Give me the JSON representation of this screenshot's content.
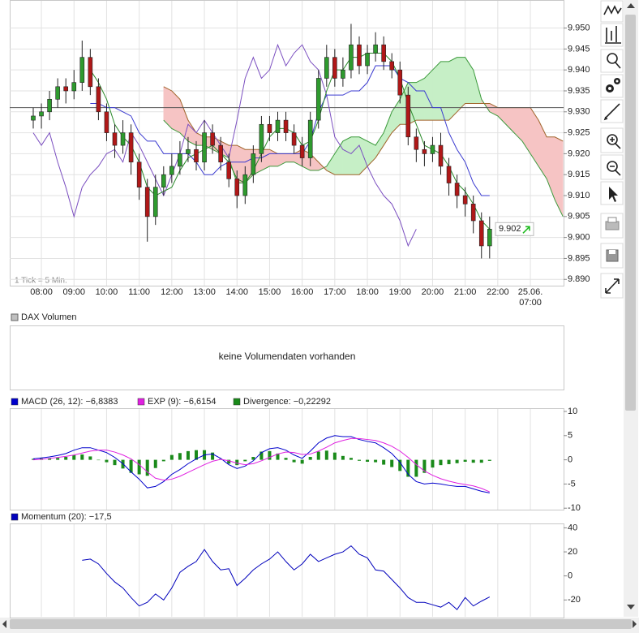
{
  "chart_data": [
    {
      "type": "candlestick",
      "note": "1 Tick = 5 Min.",
      "categories": [
        null,
        "08:00",
        null,
        null,
        null,
        "09:00",
        null,
        null,
        null,
        "10:00",
        null,
        null,
        null,
        "11:00",
        null,
        null,
        null,
        "12:00",
        null,
        null,
        null,
        "13:00",
        null,
        null,
        null,
        "14:00",
        null,
        null,
        null,
        "15:00",
        null,
        null,
        null,
        "16:00",
        null,
        null,
        null,
        "17:00",
        null,
        null,
        null,
        "18:00",
        null,
        null,
        null,
        "19:00",
        null,
        null,
        null,
        "20:00",
        null,
        null,
        null,
        "21:00",
        null,
        null,
        null,
        "22:00",
        null,
        null,
        null,
        "25.06. 07:00",
        null,
        null,
        null,
        null
      ],
      "open": [
        9.928,
        9.929,
        9.93,
        9.933,
        9.936,
        9.935,
        9.937,
        9.943,
        9.936,
        9.93,
        9.925,
        9.922,
        9.925,
        9.918,
        9.912,
        9.905,
        9.912,
        9.915,
        9.917,
        9.92,
        9.921,
        9.918,
        9.925,
        9.922,
        9.918,
        9.914,
        9.91,
        9.915,
        9.92,
        9.927,
        9.925,
        9.928,
        9.925,
        9.922,
        9.919,
        9.928,
        9.938,
        9.943,
        9.938,
        9.94,
        9.946,
        9.941,
        9.944,
        9.946,
        9.942,
        9.94,
        9.934,
        9.924,
        9.921,
        9.92,
        9.922,
        9.917,
        9.913,
        9.91,
        9.908,
        9.904,
        9.898,
        null,
        null,
        null,
        null,
        null,
        null,
        null,
        null,
        null
      ],
      "high": [
        9.931,
        9.932,
        9.935,
        9.938,
        9.938,
        9.94,
        9.947,
        9.945,
        9.938,
        9.932,
        9.927,
        9.928,
        9.927,
        9.92,
        9.914,
        9.915,
        9.917,
        9.92,
        9.923,
        9.924,
        9.923,
        9.928,
        9.927,
        9.924,
        9.92,
        9.916,
        9.917,
        9.922,
        9.929,
        9.929,
        9.93,
        9.93,
        9.927,
        9.924,
        9.93,
        9.94,
        9.946,
        9.945,
        9.943,
        9.951,
        9.948,
        9.946,
        9.949,
        9.948,
        9.944,
        9.942,
        9.936,
        9.926,
        9.923,
        9.924,
        9.925,
        9.919,
        9.915,
        9.912,
        9.91,
        9.906,
        9.905,
        null,
        null,
        null,
        null,
        null,
        null,
        null,
        null,
        null
      ],
      "low": [
        9.926,
        9.926,
        9.928,
        9.931,
        9.932,
        9.933,
        9.935,
        9.934,
        9.928,
        9.923,
        9.919,
        9.92,
        9.915,
        9.909,
        9.899,
        9.903,
        9.91,
        9.913,
        9.915,
        9.918,
        9.916,
        9.916,
        9.92,
        9.916,
        9.912,
        9.907,
        9.908,
        9.913,
        9.918,
        9.923,
        9.923,
        9.923,
        9.92,
        9.917,
        9.917,
        9.926,
        9.936,
        9.936,
        9.936,
        9.938,
        9.939,
        9.939,
        9.942,
        9.94,
        9.938,
        9.932,
        9.922,
        9.918,
        9.917,
        9.918,
        9.915,
        9.91,
        9.907,
        9.905,
        9.901,
        9.895,
        9.895,
        null,
        null,
        null,
        null,
        null,
        null,
        null,
        null,
        null
      ],
      "close": [
        9.929,
        9.93,
        9.933,
        9.936,
        9.935,
        9.937,
        9.943,
        9.936,
        9.93,
        9.925,
        9.922,
        9.925,
        9.918,
        9.912,
        9.905,
        9.912,
        9.915,
        9.917,
        9.92,
        9.921,
        9.918,
        9.925,
        9.922,
        9.918,
        9.914,
        9.91,
        9.915,
        9.92,
        9.927,
        9.925,
        9.928,
        9.925,
        9.922,
        9.919,
        9.928,
        9.938,
        9.943,
        9.938,
        9.94,
        9.946,
        9.941,
        9.944,
        9.946,
        9.942,
        9.94,
        9.934,
        9.924,
        9.921,
        9.92,
        9.922,
        9.917,
        9.913,
        9.91,
        9.908,
        9.904,
        9.898,
        9.902,
        null,
        null,
        null,
        null,
        null,
        null,
        null,
        null,
        null
      ],
      "up_color": "#2e9a2e",
      "down_color": "#b01818",
      "series": [
        {
          "color": "#7b4fc0",
          "values": [
            9.925,
            9.922,
            9.925,
            9.918,
            9.912,
            9.905,
            9.912,
            9.915,
            9.917,
            9.92,
            9.921,
            9.918,
            9.925,
            9.922,
            9.918,
            9.914,
            9.91,
            9.915,
            9.92,
            9.927,
            9.925,
            9.928,
            9.925,
            9.922,
            9.919,
            9.928,
            9.938,
            9.943,
            9.938,
            9.94,
            9.946,
            9.941,
            9.944,
            9.946,
            9.942,
            9.94,
            9.934,
            9.924,
            9.921,
            9.92,
            9.922,
            9.917,
            9.913,
            9.91,
            9.908,
            9.904,
            9.898,
            9.902,
            null,
            null,
            null,
            null,
            null,
            null,
            null,
            null,
            null,
            null,
            null,
            null,
            null,
            null,
            null,
            null,
            null,
            null
          ]
        },
        {
          "color": "#3a3ad0",
          "values": [
            null,
            null,
            null,
            null,
            null,
            null,
            null,
            9.932,
            9.932,
            9.931,
            9.931,
            9.93,
            9.929,
            9.925,
            9.923,
            9.923,
            9.92,
            9.92,
            9.92,
            9.92,
            9.918,
            9.915,
            9.915,
            9.917,
            9.918,
            9.918,
            9.918,
            9.919,
            9.919,
            9.92,
            9.92,
            9.92,
            9.92,
            9.92,
            9.923,
            9.93,
            9.934,
            9.934,
            9.934,
            9.935,
            9.935,
            9.937,
            9.941,
            9.941,
            9.941,
            9.938,
            9.937,
            9.935,
            9.935,
            9.931,
            9.931,
            9.925,
            9.921,
            9.918,
            9.913,
            9.91,
            9.91,
            null,
            null,
            null,
            null,
            null,
            null,
            null,
            null,
            null
          ]
        },
        {
          "color": "#2a8a2a",
          "values": [
            null,
            null,
            null,
            null,
            null,
            null,
            null,
            9.94,
            9.937,
            9.933,
            9.927,
            9.924,
            9.922,
            9.918,
            9.912,
            9.91,
            9.911,
            9.912,
            9.916,
            9.919,
            9.92,
            9.921,
            9.922,
            9.92,
            9.918,
            9.914,
            9.913,
            9.916,
            9.92,
            9.924,
            9.926,
            9.926,
            9.925,
            9.922,
            9.923,
            9.928,
            9.935,
            9.94,
            9.94,
            9.943,
            9.943,
            9.944,
            9.944,
            9.944,
            9.942,
            9.938,
            9.932,
            9.927,
            9.922,
            9.921,
            9.92,
            9.917,
            9.913,
            9.911,
            9.908,
            9.904,
            9.902,
            null,
            null,
            null,
            null,
            null,
            null,
            null,
            null,
            null
          ]
        }
      ],
      "cloud": {
        "span_a": [
          null,
          null,
          null,
          null,
          null,
          null,
          null,
          null,
          null,
          null,
          null,
          null,
          null,
          null,
          null,
          null,
          9.928,
          9.926,
          9.925,
          9.923,
          9.922,
          9.922,
          9.921,
          9.92,
          9.919,
          9.913,
          9.913,
          9.915,
          9.916,
          9.917,
          9.917,
          9.918,
          9.918,
          9.917,
          9.916,
          9.916,
          9.917,
          9.92,
          9.923,
          9.924,
          9.924,
          9.923,
          9.922,
          9.925,
          9.93,
          9.933,
          9.937,
          9.937,
          9.938,
          9.94,
          9.942,
          9.942,
          9.943,
          9.943,
          9.94,
          9.933,
          9.93,
          9.929,
          9.927,
          9.925,
          9.923,
          9.92,
          9.917,
          9.914,
          9.909,
          9.905
        ],
        "span_b": [
          null,
          null,
          null,
          null,
          null,
          null,
          null,
          null,
          null,
          null,
          null,
          null,
          null,
          null,
          null,
          null,
          9.936,
          9.935,
          9.933,
          9.928,
          9.925,
          9.924,
          9.924,
          9.923,
          9.922,
          9.922,
          9.921,
          9.921,
          9.921,
          9.921,
          9.92,
          9.92,
          9.92,
          9.921,
          9.92,
          9.918,
          9.916,
          9.915,
          9.915,
          9.915,
          9.915,
          9.917,
          9.919,
          9.922,
          9.925,
          9.927,
          9.927,
          9.928,
          9.928,
          9.928,
          9.928,
          9.928,
          9.93,
          9.932,
          9.932,
          9.932,
          9.932,
          9.931,
          9.931,
          9.931,
          9.931,
          9.931,
          9.928,
          9.924,
          9.924,
          9.923
        ],
        "span_a_color": "#3c9a3c",
        "span_b_color": "#a0642a",
        "up_fill": "#c6efc6",
        "down_fill": "#f6c4c4"
      },
      "reference_line": 9.931,
      "last_price": 9.902,
      "ylim": [
        9.8885,
        9.9565
      ],
      "yticks": [
        {
          "value": 9.95,
          "label": "9.950"
        },
        9.945,
        {
          "value": 9.94,
          "label": "9.940"
        },
        9.935,
        {
          "value": 9.93,
          "label": "9.930"
        },
        9.925,
        {
          "value": 9.92,
          "label": "9.920"
        },
        9.915,
        {
          "value": 9.91,
          "label": "9.910"
        },
        9.905,
        {
          "value": 9.9,
          "label": "9.900"
        },
        9.895,
        {
          "value": 9.89,
          "label": "9.890"
        }
      ],
      "grid": true
    },
    {
      "type": "bar",
      "title": "DAX Volumen",
      "message": "keine Volumendaten vorhanden",
      "color": "#c0c0c0"
    },
    {
      "type": "line",
      "series": [
        {
          "name": "MACD (26, 12): −6,8383",
          "color": "#0000cc",
          "style": "line",
          "values": [
            0.2,
            0.4,
            0.6,
            0.9,
            1.3,
            2.0,
            2.5,
            2.5,
            2.0,
            1.5,
            0.5,
            -0.8,
            -2.5,
            -4.0,
            -5.8,
            -5.5,
            -4.5,
            -3.0,
            -2.0,
            -0.8,
            0.2,
            1.0,
            1.2,
            0.3,
            -1.0,
            -1.8,
            -1.3,
            -0.2,
            1.5,
            2.3,
            2.5,
            2.0,
            1.0,
            0.3,
            1.8,
            3.5,
            4.5,
            5.0,
            4.8,
            4.8,
            4.2,
            3.8,
            3.5,
            2.5,
            1.3,
            -0.5,
            -3.0,
            -4.5,
            -5.0,
            -4.8,
            -5.0,
            -5.3,
            -5.5,
            -5.5,
            -6.0,
            -6.5,
            -6.84,
            null,
            null,
            null,
            null,
            null,
            null,
            null,
            null,
            null
          ]
        },
        {
          "name": "EXP (9): −6,6154",
          "color": "#e020e0",
          "style": "line",
          "values": [
            0,
            0.1,
            0.3,
            0.5,
            0.7,
            1.0,
            1.4,
            1.8,
            2.0,
            2.0,
            1.6,
            1.0,
            0.2,
            -1.0,
            -2.5,
            -3.8,
            -4.2,
            -4.0,
            -3.4,
            -2.6,
            -1.8,
            -1.0,
            -0.3,
            0.1,
            -0.2,
            -0.7,
            -1.0,
            -0.8,
            -0.2,
            0.5,
            1.2,
            1.6,
            1.5,
            1.1,
            1.2,
            1.8,
            2.6,
            3.5,
            4.0,
            4.4,
            4.4,
            4.2,
            4.0,
            3.5,
            2.8,
            1.8,
            0.5,
            -1.0,
            -2.3,
            -3.2,
            -3.9,
            -4.4,
            -4.8,
            -5.1,
            -5.4,
            -5.9,
            -6.62,
            null,
            null,
            null,
            null,
            null,
            null,
            null,
            null,
            null
          ]
        },
        {
          "name": "Divergence: −0,22292",
          "color": "#1a8a1a",
          "style": "bar",
          "values": [
            0.2,
            0.3,
            0.3,
            0.4,
            0.6,
            1.0,
            1.1,
            0.7,
            0,
            -0.5,
            -1.1,
            -1.8,
            -2.7,
            -3.0,
            -3.3,
            -1.7,
            -0.3,
            1.0,
            1.4,
            1.8,
            2.0,
            2.0,
            1.5,
            0.2,
            -0.8,
            -1.1,
            -0.3,
            0.6,
            1.7,
            1.8,
            1.3,
            0.4,
            -0.5,
            -0.8,
            0.6,
            1.7,
            1.9,
            1.5,
            0.8,
            0.4,
            -0.2,
            -0.4,
            -0.5,
            -1.0,
            -1.5,
            -2.3,
            -3.5,
            -3.5,
            -2.7,
            -1.6,
            -1.1,
            -0.9,
            -0.7,
            -0.4,
            -0.6,
            -0.6,
            -0.22,
            null,
            null,
            null,
            null,
            null,
            null,
            null,
            null,
            null
          ]
        }
      ],
      "ylim": [
        -10.3,
        10.5
      ],
      "yticks": [
        10,
        5,
        0,
        -5,
        -10
      ],
      "grid": true
    },
    {
      "type": "line",
      "series": [
        {
          "name": "Momentum (20): −17,5",
          "color": "#0000bb",
          "style": "line",
          "values": [
            null,
            null,
            null,
            null,
            null,
            null,
            13,
            14,
            10,
            2,
            -5,
            -10,
            -18,
            -25,
            -22,
            -15,
            -20,
            -10,
            3,
            8,
            12,
            22,
            12,
            5,
            6,
            -8,
            -2,
            5,
            10,
            14,
            20,
            12,
            5,
            10,
            18,
            12,
            15,
            18,
            20,
            25,
            18,
            15,
            5,
            4,
            -3,
            -10,
            -18,
            -22,
            -22,
            -24,
            -26,
            -22,
            -28,
            -18,
            -25,
            -21,
            -17.5,
            null,
            null,
            null,
            null,
            null,
            null,
            null,
            null,
            null
          ]
        }
      ],
      "ylim": [
        -34,
        43
      ],
      "yticks": [
        40,
        20,
        0,
        -20
      ],
      "grid": true
    }
  ]
}
